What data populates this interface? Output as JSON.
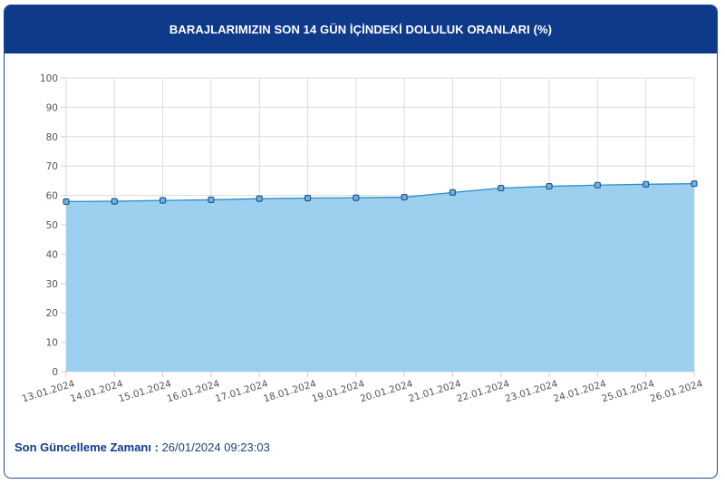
{
  "header": {
    "title": "BARAJLARIMIZIN SON 14 GÜN İÇİNDEKİ DOLULUK ORANLARI (%)"
  },
  "footer": {
    "label": "Son Güncelleme Zamanı :",
    "value": "26/01/2024 09:23:03"
  },
  "colors": {
    "header_bg": "#0f3a8a",
    "area_fill": "#9dcfee",
    "line": "#2e8fc9",
    "marker_stroke": "#1e4f8a",
    "marker_fill": "#6eb2e3"
  },
  "chart_data": {
    "type": "area",
    "title": "BARAJLARIMIZIN SON 14 GÜN İÇİNDEKİ DOLULUK ORANLARI (%)",
    "categories": [
      "13.01.2024",
      "14.01.2024",
      "15.01.2024",
      "16.01.2024",
      "17.01.2024",
      "18.01.2024",
      "19.01.2024",
      "20.01.2024",
      "21.01.2024",
      "22.01.2024",
      "23.01.2024",
      "24.01.2024",
      "25.01.2024",
      "26.01.2024"
    ],
    "values": [
      57.9,
      58.0,
      58.3,
      58.5,
      58.9,
      59.1,
      59.2,
      59.4,
      61.0,
      62.5,
      63.1,
      63.5,
      63.8,
      64.0
    ],
    "ylim": [
      0,
      100
    ],
    "yticks": [
      0,
      10,
      20,
      30,
      40,
      50,
      60,
      70,
      80,
      90,
      100
    ],
    "grid": true,
    "legend": "none"
  }
}
